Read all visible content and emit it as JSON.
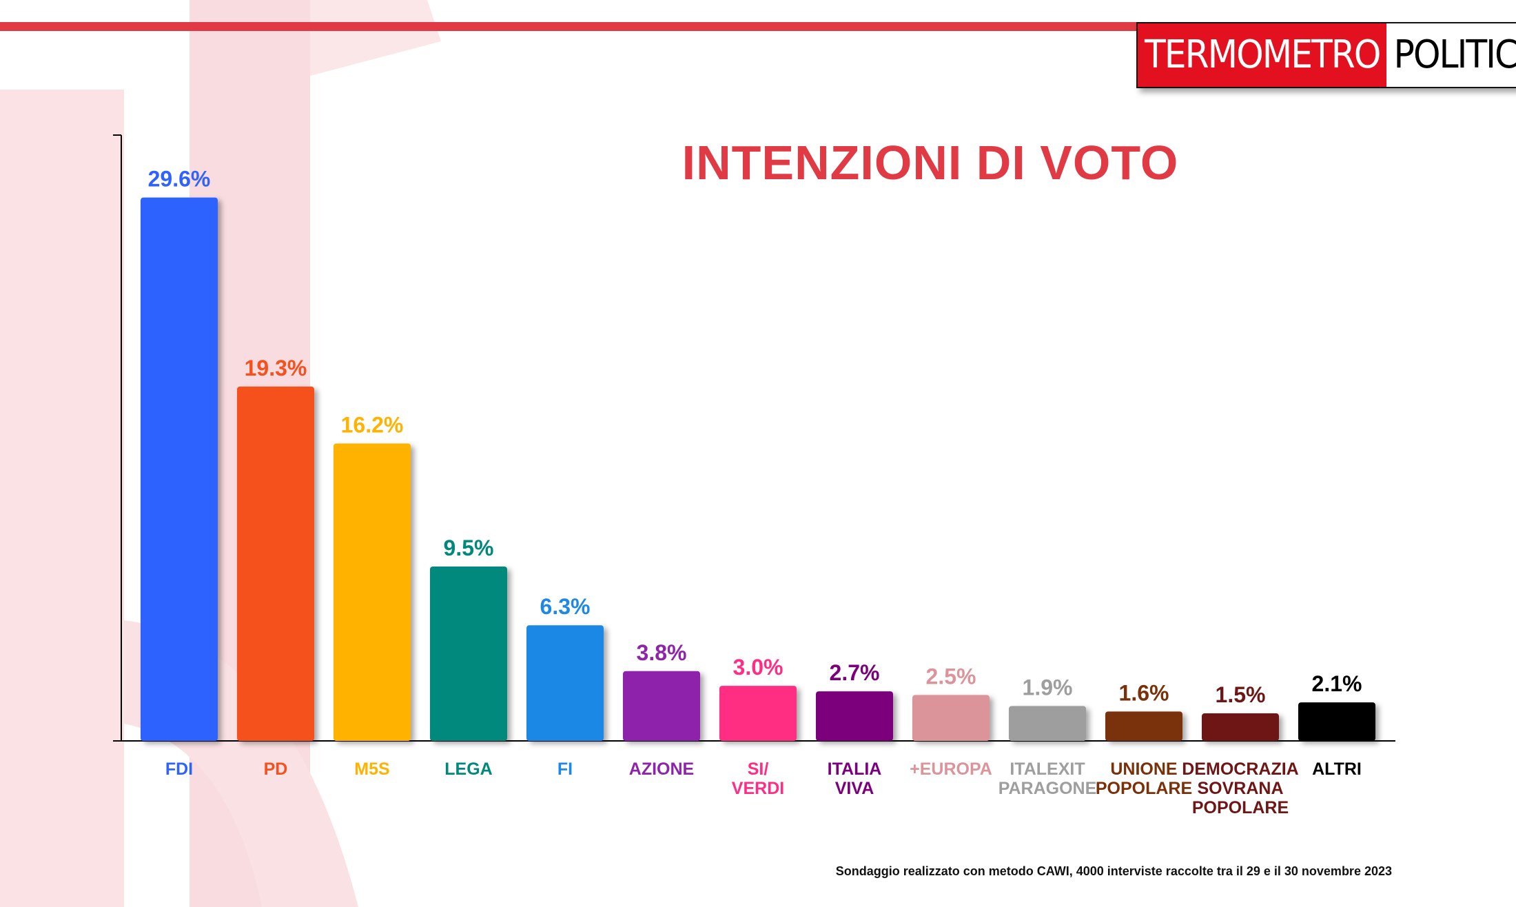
{
  "logo": {
    "part1": "TERMOMETRO",
    "part2": "POLITICO"
  },
  "footnote": "Sondaggio realizzato con metodo CAWI, 4000 interviste raccolte tra il 29 e il 30 novembre 2023",
  "colors": {
    "accent": "#e03a45"
  },
  "chart_data": {
    "type": "bar",
    "title": "INTENZIONI DI VOTO",
    "ylim": [
      0,
      33
    ],
    "categories": [
      "FDI",
      "PD",
      "M5S",
      "LEGA",
      "FI",
      "AZIONE",
      "SI/\nVERDI",
      "ITALIA\nVIVA",
      "+EUROPA",
      "ITALEXIT\nPARAGONE",
      "UNIONE\nPOPOLARE",
      "DEMOCRAZIA\nSOVRANA\nPOPOLARE",
      "ALTRI"
    ],
    "values": [
      29.6,
      19.3,
      16.2,
      9.5,
      6.3,
      3.8,
      3.0,
      2.7,
      2.5,
      1.9,
      1.6,
      1.5,
      2.1
    ],
    "value_labels": [
      "29.6%",
      "19.3%",
      "16.2%",
      "9.5%",
      "6.3%",
      "3.8%",
      "3.0%",
      "2.7%",
      "2.5%",
      "1.9%",
      "1.6%",
      "1.5%",
      "2.1%"
    ],
    "colors": [
      "#2f62ff",
      "#f4511e",
      "#ffb300",
      "#00897b",
      "#1e88e5",
      "#8e24aa",
      "#ff2d83",
      "#7b007b",
      "#dc949b",
      "#9e9e9e",
      "#7a3008",
      "#6e1616",
      "#000000"
    ],
    "grid": false
  }
}
